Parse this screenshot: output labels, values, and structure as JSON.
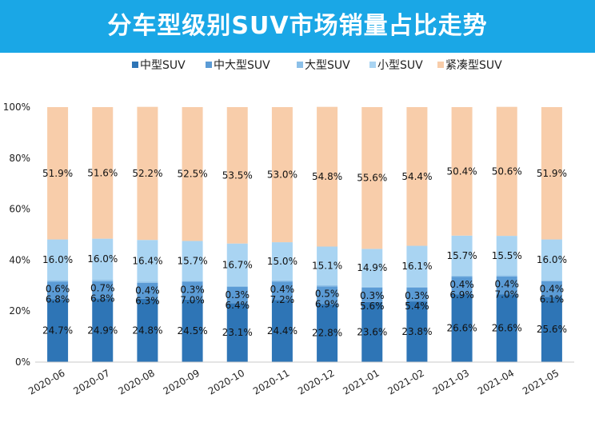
{
  "banner": {
    "title": "分车型级别SUV市场销量占比走势",
    "color": "#1aa7e6"
  },
  "chart_data": {
    "type": "bar",
    "stacked": true,
    "title": "分车型级别SUV市场销量占比走势",
    "xlabel": "",
    "ylabel": "",
    "ylim": [
      0,
      100
    ],
    "yticks": [
      "0%",
      "20%",
      "40%",
      "60%",
      "80%",
      "100%"
    ],
    "legend_position": "top",
    "grid": false,
    "categories": [
      "2020-06",
      "2020-07",
      "2020-08",
      "2020-09",
      "2020-10",
      "2020-11",
      "2020-12",
      "2021-01",
      "2021-02",
      "2021-03",
      "2021-04",
      "2021-05"
    ],
    "series": [
      {
        "name": "中型SUV",
        "color": "#2e75b6",
        "values": [
          24.7,
          24.9,
          24.8,
          24.5,
          23.1,
          24.4,
          22.8,
          23.6,
          23.8,
          26.6,
          26.6,
          25.6
        ],
        "labels": [
          "24.7%",
          "24.9%",
          "24.8%",
          "24.5%",
          "23.1%",
          "24.4%",
          "22.8%",
          "23.6%",
          "23.8%",
          "26.6%",
          "26.6%",
          "25.6%"
        ]
      },
      {
        "name": "中大型SUV",
        "color": "#5b9bd5",
        "values": [
          6.8,
          6.8,
          6.3,
          7.0,
          6.4,
          7.2,
          6.9,
          5.6,
          5.4,
          6.9,
          7.0,
          6.1
        ],
        "labels": [
          "6.8%",
          "6.8%",
          "6.3%",
          "7.0%",
          "6.4%",
          "7.2%",
          "6.9%",
          "5.6%",
          "5.4%",
          "6.9%",
          "7.0%",
          "6.1%"
        ]
      },
      {
        "name": "大型SUV",
        "color": "#8cc0e8",
        "values": [
          0.6,
          0.7,
          0.4,
          0.3,
          0.3,
          0.4,
          0.5,
          0.3,
          0.3,
          0.4,
          0.4,
          0.4
        ],
        "labels": [
          "0.6%",
          "0.7%",
          "0.4%",
          "0.3%",
          "0.3%",
          "0.4%",
          "0.5%",
          "0.3%",
          "0.3%",
          "0.4%",
          "0.4%",
          "0.4%"
        ]
      },
      {
        "name": "小型SUV",
        "color": "#a9d4f2",
        "values": [
          16.0,
          16.0,
          16.4,
          15.7,
          16.7,
          15.0,
          15.1,
          14.9,
          16.1,
          15.7,
          15.5,
          16.0
        ],
        "labels": [
          "16.0%",
          "16.0%",
          "16.4%",
          "15.7%",
          "16.7%",
          "15.0%",
          "15.1%",
          "14.9%",
          "16.1%",
          "15.7%",
          "15.5%",
          "16.0%"
        ]
      },
      {
        "name": "紧凑型SUV",
        "color": "#f8cdaa",
        "values": [
          51.9,
          51.6,
          52.2,
          52.5,
          53.5,
          53.0,
          54.8,
          55.6,
          54.4,
          50.4,
          50.6,
          51.9
        ],
        "labels": [
          "51.9%",
          "51.6%",
          "52.2%",
          "52.5%",
          "53.5%",
          "53.0%",
          "54.8%",
          "55.6%",
          "54.4%",
          "50.4%",
          "50.6%",
          "51.9%"
        ]
      }
    ]
  }
}
